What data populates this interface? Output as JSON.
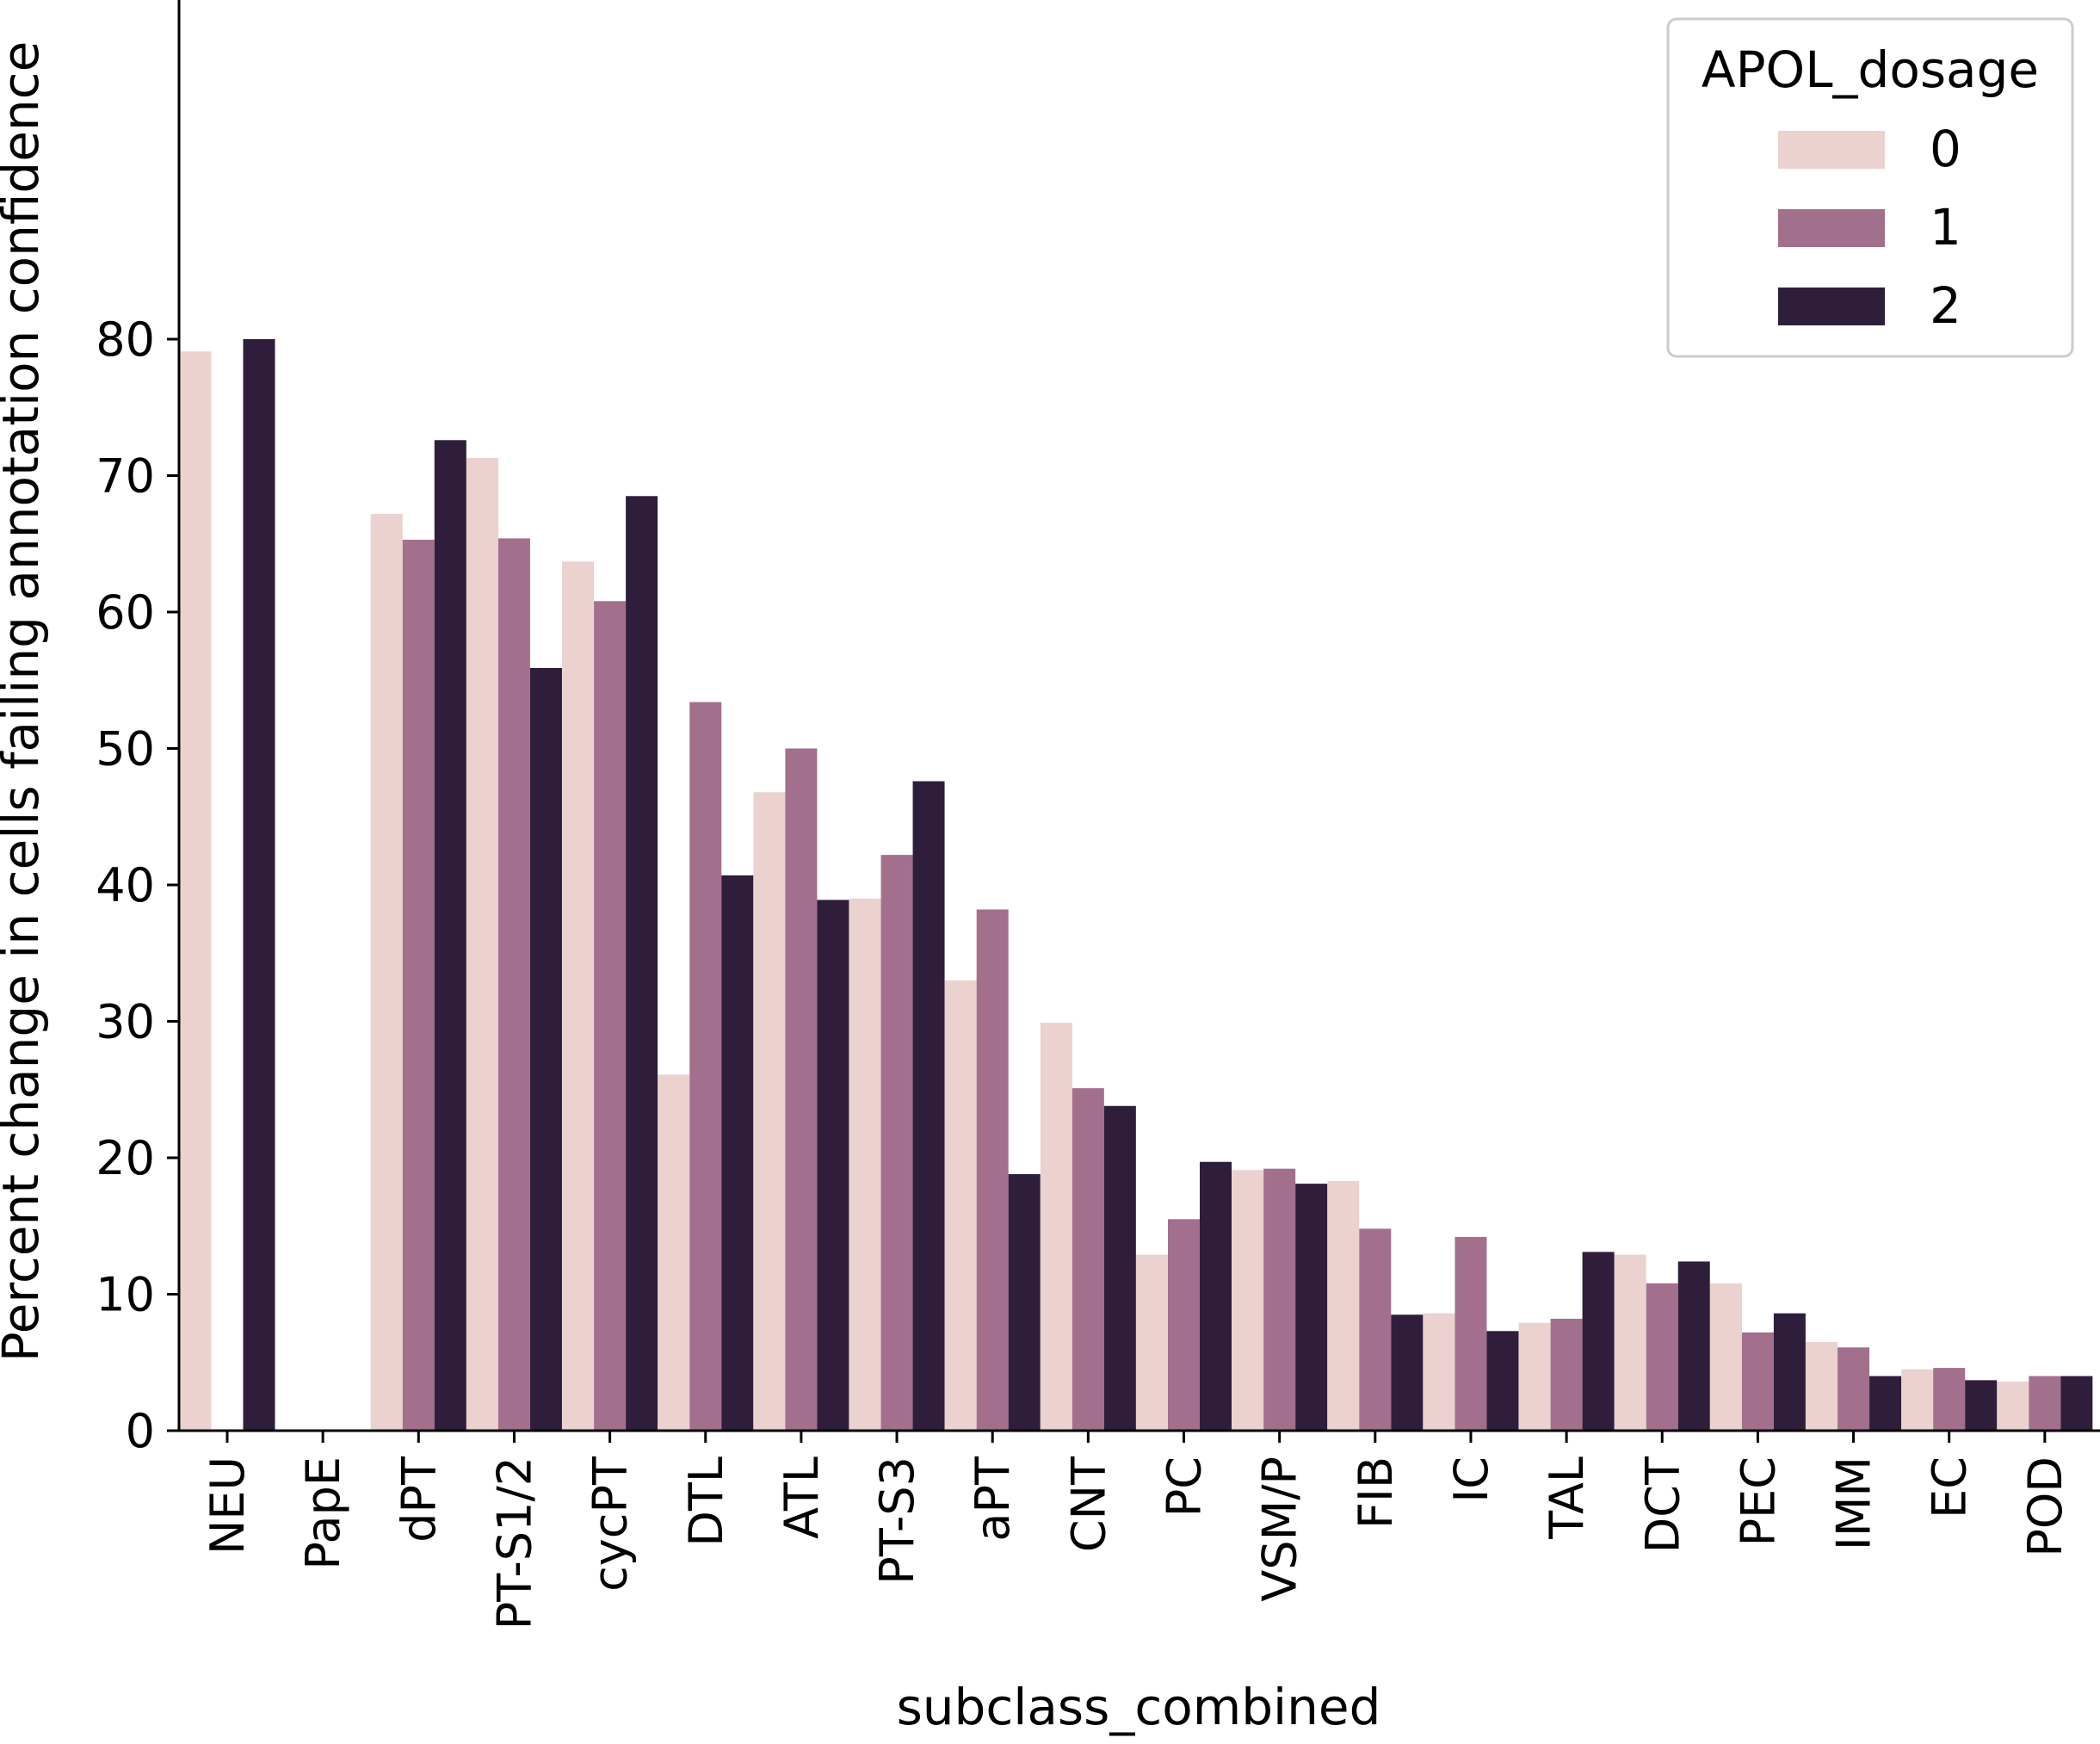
{
  "chart_data": {
    "type": "bar",
    "xlabel": "subclass_combined",
    "ylabel": "Percent change in cells failing annotation confidence",
    "ylim": [
      0,
      83
    ],
    "yticks": [
      0,
      10,
      20,
      30,
      40,
      50,
      60,
      70,
      80
    ],
    "categories": [
      "NEU",
      "PapE",
      "dPT",
      "PT-S1/2",
      "cycPT",
      "DTL",
      "ATL",
      "PT-S3",
      "aPT",
      "CNT",
      "PC",
      "VSM/P",
      "FIB",
      "IC",
      "TAL",
      "DCT",
      "PEC",
      "IMM",
      "EC",
      "POD"
    ],
    "series": [
      {
        "name": "0",
        "color": "#ebd2cf",
        "values": [
          79.1,
          0,
          67.2,
          71.3,
          63.7,
          26.1,
          46.8,
          39.0,
          33.0,
          29.9,
          12.9,
          19.1,
          18.3,
          8.6,
          7.9,
          12.9,
          10.8,
          6.5,
          4.5,
          3.6
        ]
      },
      {
        "name": "1",
        "color": "#a2708c",
        "values": [
          0,
          0,
          65.3,
          65.4,
          60.8,
          53.4,
          50.0,
          42.2,
          38.2,
          25.1,
          15.5,
          19.2,
          14.8,
          14.2,
          8.2,
          10.8,
          7.2,
          6.1,
          4.6,
          4.0
        ]
      },
      {
        "name": "2",
        "color": "#2e1e3b",
        "values": [
          80.0,
          0,
          72.6,
          55.9,
          68.5,
          40.7,
          38.9,
          47.6,
          18.8,
          23.8,
          19.7,
          18.1,
          8.5,
          7.3,
          13.1,
          12.4,
          8.6,
          4.0,
          3.7,
          4.0
        ]
      }
    ],
    "legend": {
      "title": "APOL_dosage",
      "position": "top-right",
      "entries": [
        "0",
        "1",
        "2"
      ]
    },
    "grid": false
  }
}
